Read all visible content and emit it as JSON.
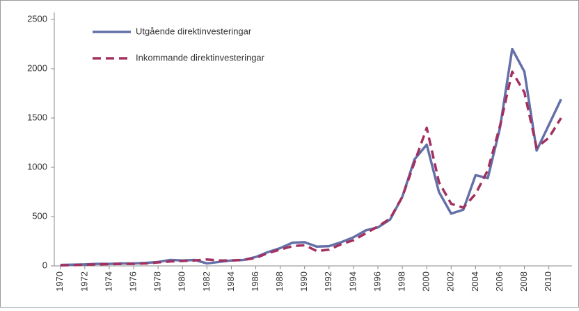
{
  "chart_data": {
    "type": "line",
    "x": [
      1970,
      1971,
      1972,
      1973,
      1974,
      1975,
      1976,
      1977,
      1978,
      1979,
      1980,
      1981,
      1982,
      1983,
      1984,
      1985,
      1986,
      1987,
      1988,
      1989,
      1990,
      1991,
      1992,
      1993,
      1994,
      1995,
      1996,
      1997,
      1998,
      1999,
      2000,
      2001,
      2002,
      2003,
      2004,
      2005,
      2006,
      2007,
      2008,
      2009,
      2010,
      2011
    ],
    "series": [
      {
        "name": "Utgående direktinvesteringar",
        "color": "#6470a8",
        "dash": false,
        "values": [
          10,
          12,
          15,
          20,
          20,
          25,
          25,
          30,
          40,
          60,
          55,
          60,
          25,
          40,
          55,
          60,
          90,
          140,
          180,
          235,
          240,
          195,
          200,
          240,
          290,
          360,
          390,
          470,
          700,
          1080,
          1230,
          750,
          530,
          570,
          920,
          890,
          1400,
          2200,
          1970,
          1170,
          1430,
          1690
        ]
      },
      {
        "name": "Inkommande direktinvesteringar",
        "color": "#a3305f",
        "dash": true,
        "values": [
          5,
          8,
          12,
          15,
          18,
          20,
          20,
          25,
          35,
          45,
          50,
          55,
          65,
          55,
          55,
          60,
          80,
          130,
          165,
          200,
          210,
          150,
          165,
          220,
          260,
          330,
          400,
          480,
          700,
          1050,
          1400,
          850,
          630,
          590,
          730,
          970,
          1420,
          1970,
          1760,
          1200,
          1300,
          1500
        ]
      }
    ],
    "xlim": [
      1969.5,
      2011.9
    ],
    "xticks": [
      1970,
      1972,
      1974,
      1976,
      1978,
      1980,
      1982,
      1984,
      1986,
      1988,
      1990,
      1992,
      1994,
      1996,
      1998,
      2000,
      2002,
      2004,
      2006,
      2008,
      2010
    ],
    "ylim": [
      0,
      2500
    ],
    "yticks": [
      0,
      500,
      1000,
      1500,
      2000,
      2500
    ],
    "legend": "top-left"
  }
}
